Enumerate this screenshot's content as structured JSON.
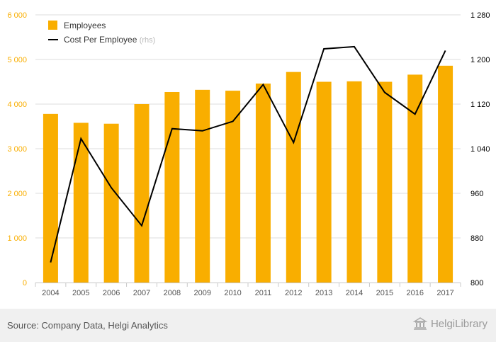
{
  "chart_data": {
    "type": "bar",
    "categories": [
      "2004",
      "2005",
      "2006",
      "2007",
      "2008",
      "2009",
      "2010",
      "2011",
      "2012",
      "2013",
      "2014",
      "2015",
      "2016",
      "2017"
    ],
    "series": [
      {
        "name": "Employees",
        "type": "bar",
        "axis": "left",
        "color": "#f9ae00",
        "values": [
          3780,
          3580,
          3560,
          4000,
          4270,
          4320,
          4300,
          4460,
          4720,
          4500,
          4510,
          4500,
          4660,
          4860
        ]
      },
      {
        "name": "Cost Per Employee",
        "type": "line",
        "axis": "right",
        "color": "#000000",
        "values": [
          836,
          1058,
          970,
          902,
          1076,
          1072,
          1089,
          1155,
          1051,
          1219,
          1223,
          1141,
          1102,
          1216
        ]
      }
    ],
    "left_axis": {
      "min": 0,
      "max": 6000,
      "ticks": [
        0,
        1000,
        2000,
        3000,
        4000,
        5000,
        6000
      ],
      "tick_labels": [
        "0",
        "1 000",
        "2 000",
        "3 000",
        "4 000",
        "5 000",
        "6 000"
      ],
      "color": "#f9ae00"
    },
    "right_axis": {
      "min": 800,
      "max": 1280,
      "ticks": [
        800,
        880,
        960,
        1040,
        1120,
        1200,
        1280
      ],
      "tick_labels": [
        "800",
        "880",
        "960",
        "1 040",
        "1 120",
        "1 200",
        "1 280"
      ],
      "color": "#000000"
    },
    "legend": {
      "position": "top-left",
      "items": [
        {
          "label": "Employees",
          "note": "",
          "marker": "square"
        },
        {
          "label": "Cost Per Employee",
          "note": "(rhs)",
          "marker": "line"
        }
      ]
    },
    "grid": {
      "horizontal": true
    }
  },
  "footer": {
    "source": "Source: Company Data, Helgi Analytics",
    "brand": "HelgiLibrary"
  }
}
